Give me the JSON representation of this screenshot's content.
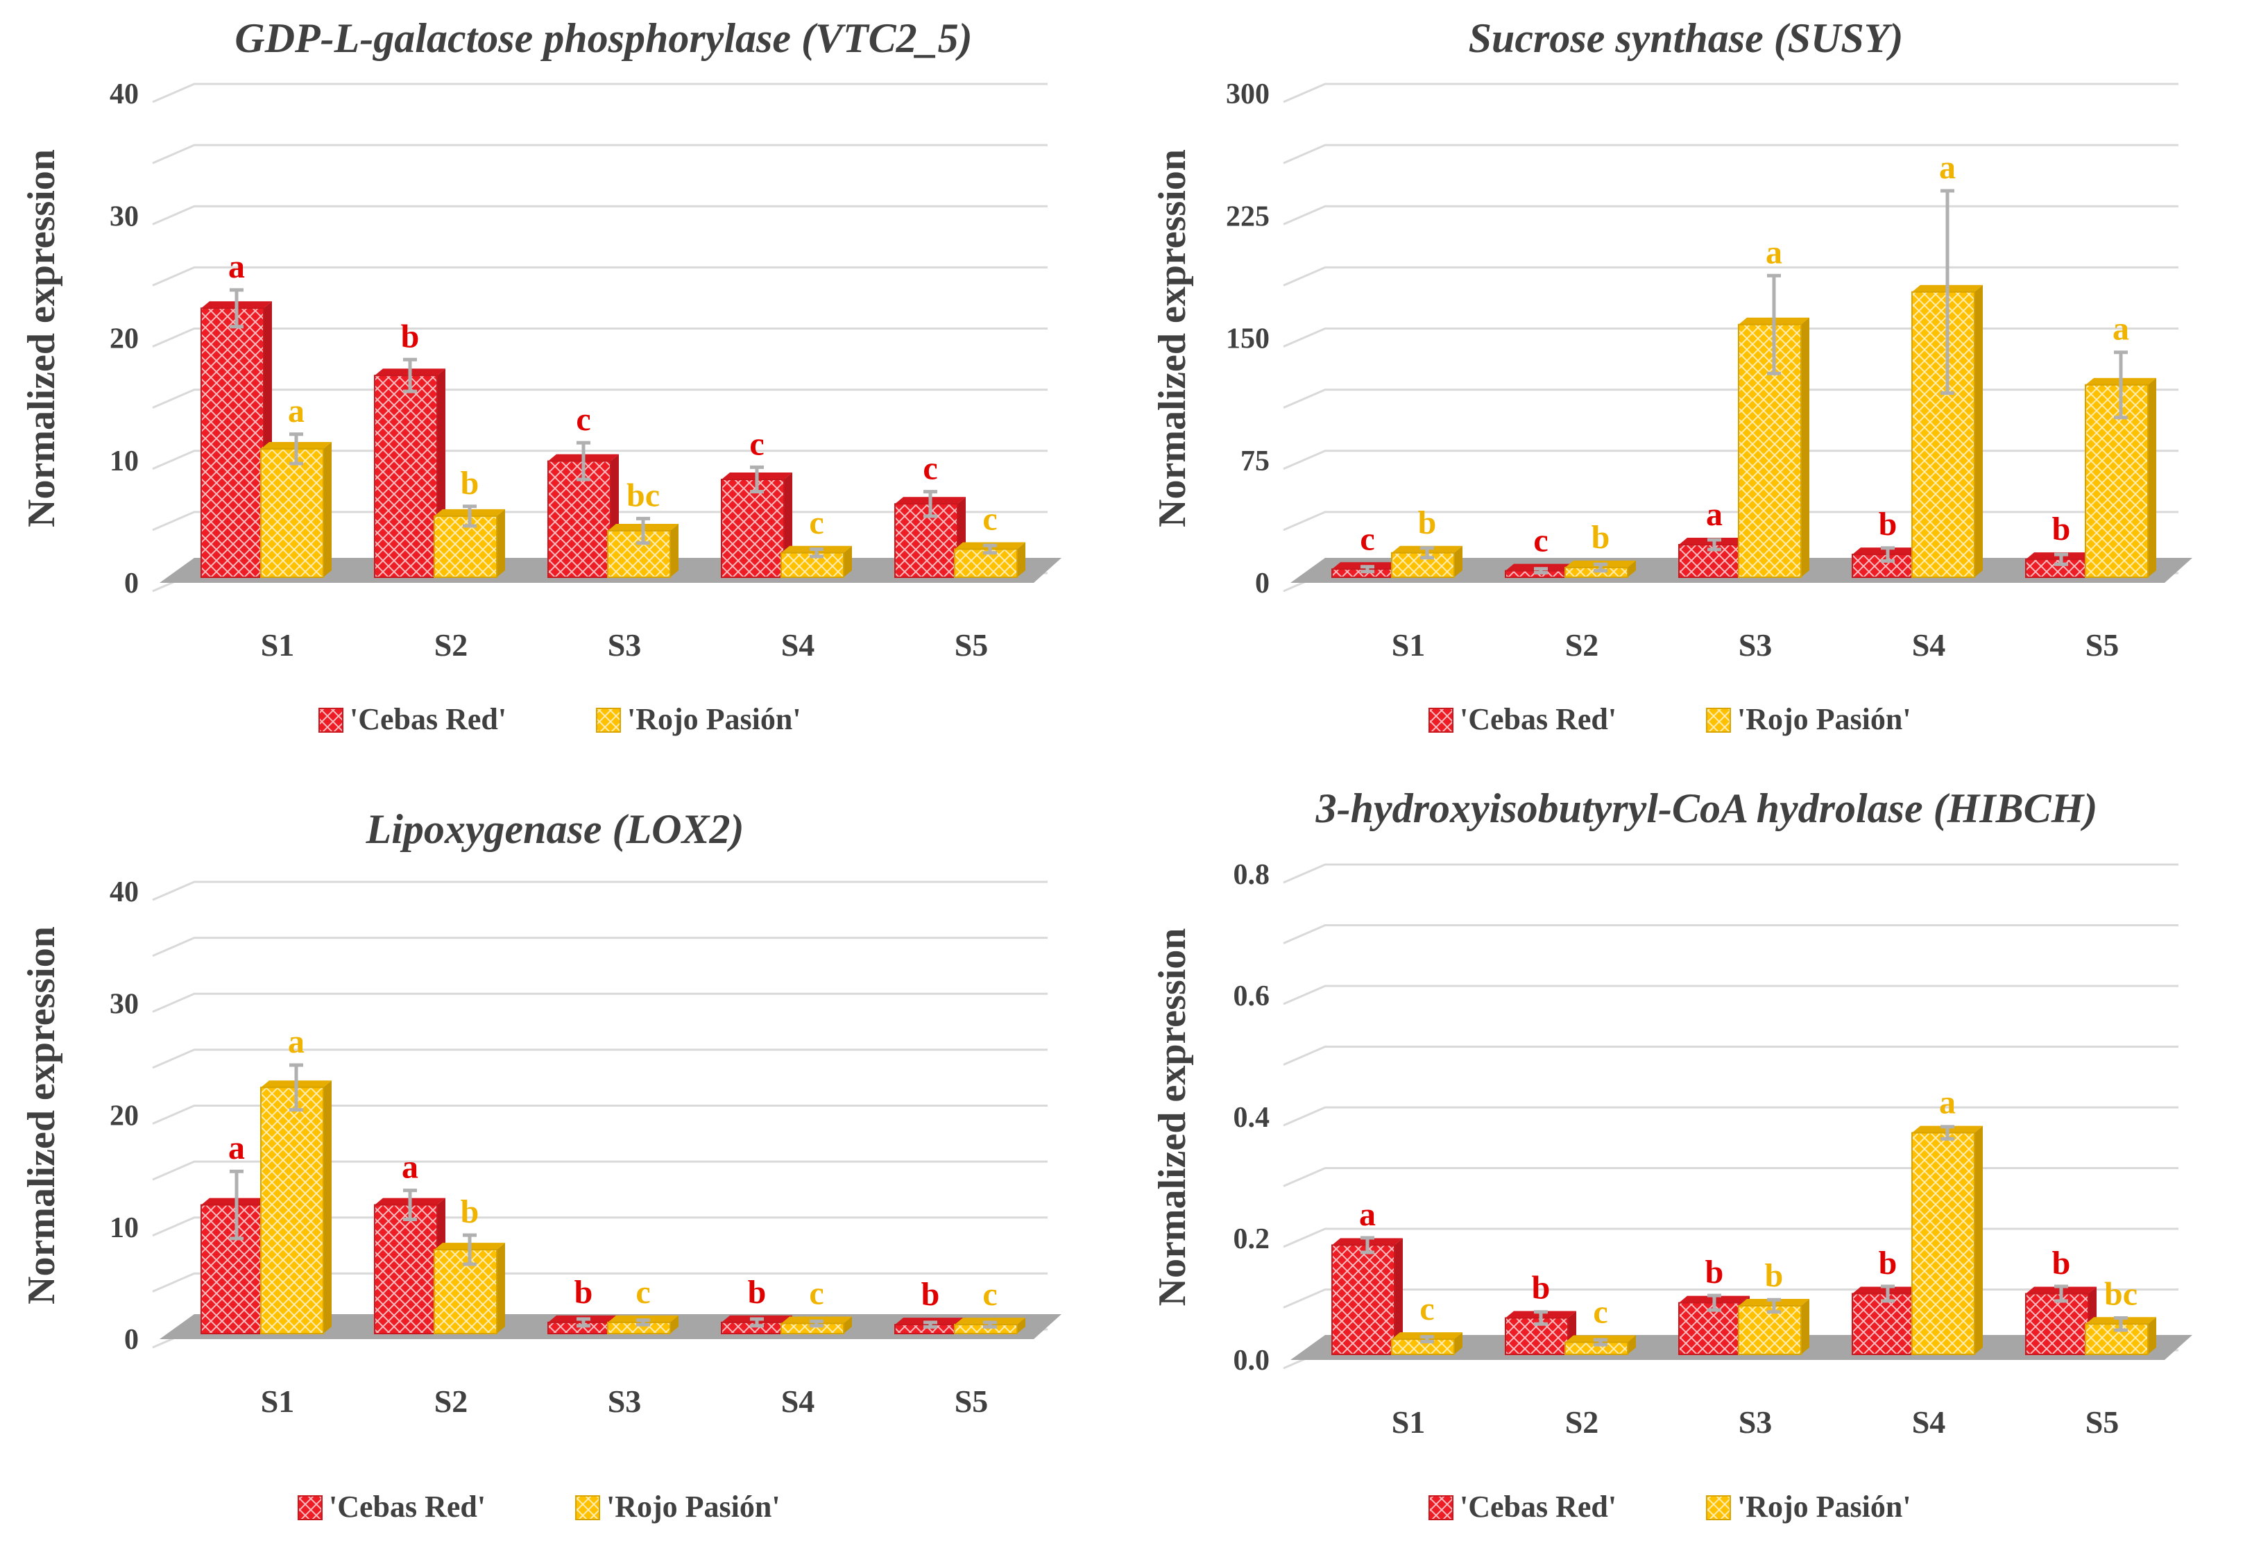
{
  "colors": {
    "cebas": "#ee1c25",
    "rojo": "#ffc000",
    "cebas_label": "#e00000",
    "rojo_label": "#f0b400",
    "floor": "#a6a6a6",
    "error": "#b0b0b0"
  },
  "chart_data": [
    {
      "type": "bar",
      "title": "GDP-L-galactose phosphorylase (VTC2_5)",
      "ylabel": "Normalized expression",
      "xlabel": "",
      "categories": [
        "S1",
        "S2",
        "S3",
        "S4",
        "S5"
      ],
      "ylim": [
        0,
        40
      ],
      "yticks": [
        "0",
        "10",
        "20",
        "30",
        "40"
      ],
      "legend": [
        "'Cebas Red'",
        "'Rojo Pasión'"
      ],
      "series": [
        {
          "name": "'Cebas Red'",
          "values": [
            22,
            16.5,
            9.5,
            8,
            6
          ],
          "errors": [
            1.5,
            1.3,
            1.5,
            1,
            1
          ],
          "letters": [
            "a",
            "b",
            "c",
            "c",
            "c"
          ]
        },
        {
          "name": "'Rojo Pasión'",
          "values": [
            10.5,
            5,
            3.8,
            2,
            2.3
          ],
          "errors": [
            1.2,
            0.8,
            1,
            0.3,
            0.3
          ],
          "letters": [
            "a",
            "b",
            "bc",
            "c",
            "c"
          ]
        }
      ]
    },
    {
      "type": "bar",
      "title": "Sucrose synthase (SUSY)",
      "ylabel": "Normalized expression",
      "xlabel": "",
      "categories": [
        "S1",
        "S2",
        "S3",
        "S4",
        "S5"
      ],
      "ylim": [
        0,
        300
      ],
      "yticks": [
        "0",
        "75",
        "150",
        "225",
        "300"
      ],
      "legend": [
        "'Cebas Red'",
        "'Rojo Pasión'"
      ],
      "series": [
        {
          "name": "'Cebas Red'",
          "values": [
            5,
            4,
            20,
            14,
            11
          ],
          "errors": [
            1.5,
            1.2,
            3,
            4,
            3
          ],
          "letters": [
            "c",
            "c",
            "a",
            "b",
            "b"
          ]
        },
        {
          "name": "'Rojo Pasión'",
          "values": [
            15,
            6,
            155,
            175,
            118
          ],
          "errors": [
            3,
            2,
            30,
            62,
            20
          ],
          "letters": [
            "b",
            "b",
            "a",
            "a",
            "a"
          ]
        }
      ]
    },
    {
      "type": "bar",
      "title": "Lipoxygenase (LOX2)",
      "ylabel": "Normalized expression",
      "xlabel": "",
      "categories": [
        "S1",
        "S2",
        "S3",
        "S4",
        "S5"
      ],
      "ylim": [
        0,
        40
      ],
      "yticks": [
        "0",
        "10",
        "20",
        "30",
        "40"
      ],
      "legend": [
        "'Cebas Red'",
        "'Rojo Pasión'"
      ],
      "series": [
        {
          "name": "'Cebas Red'",
          "values": [
            11.5,
            11.5,
            1,
            1,
            0.8
          ],
          "errors": [
            3,
            1.3,
            0.3,
            0.3,
            0.2
          ],
          "letters": [
            "a",
            "a",
            "b",
            "b",
            "b"
          ]
        },
        {
          "name": "'Rojo Pasión'",
          "values": [
            22,
            7.5,
            1,
            0.9,
            0.8
          ],
          "errors": [
            2,
            1.3,
            0.2,
            0.2,
            0.2
          ],
          "letters": [
            "a",
            "b",
            "c",
            "c",
            "c"
          ]
        }
      ]
    },
    {
      "type": "bar",
      "title": "3-hydroxyisobutyryl-CoA hydrolase (HIBCH)",
      "ylabel": "Normalized expression",
      "xlabel": "",
      "categories": [
        "S1",
        "S2",
        "S3",
        "S4",
        "S5"
      ],
      "ylim": [
        0,
        0.8
      ],
      "yticks": [
        "0.0",
        "0.2",
        "0.4",
        "0.6",
        "0.8"
      ],
      "legend": [
        "'Cebas Red'",
        "'Rojo Pasión'"
      ],
      "series": [
        {
          "name": "'Cebas Red'",
          "values": [
            0.18,
            0.06,
            0.085,
            0.1,
            0.1
          ],
          "errors": [
            0.012,
            0.01,
            0.012,
            0.012,
            0.012
          ],
          "letters": [
            "a",
            "b",
            "b",
            "b",
            "b"
          ]
        },
        {
          "name": "'Rojo Pasión'",
          "values": [
            0.025,
            0.02,
            0.08,
            0.365,
            0.05
          ],
          "errors": [
            0.004,
            0.004,
            0.01,
            0.01,
            0.01
          ],
          "letters": [
            "c",
            "c",
            "b",
            "a",
            "bc"
          ]
        }
      ]
    }
  ]
}
